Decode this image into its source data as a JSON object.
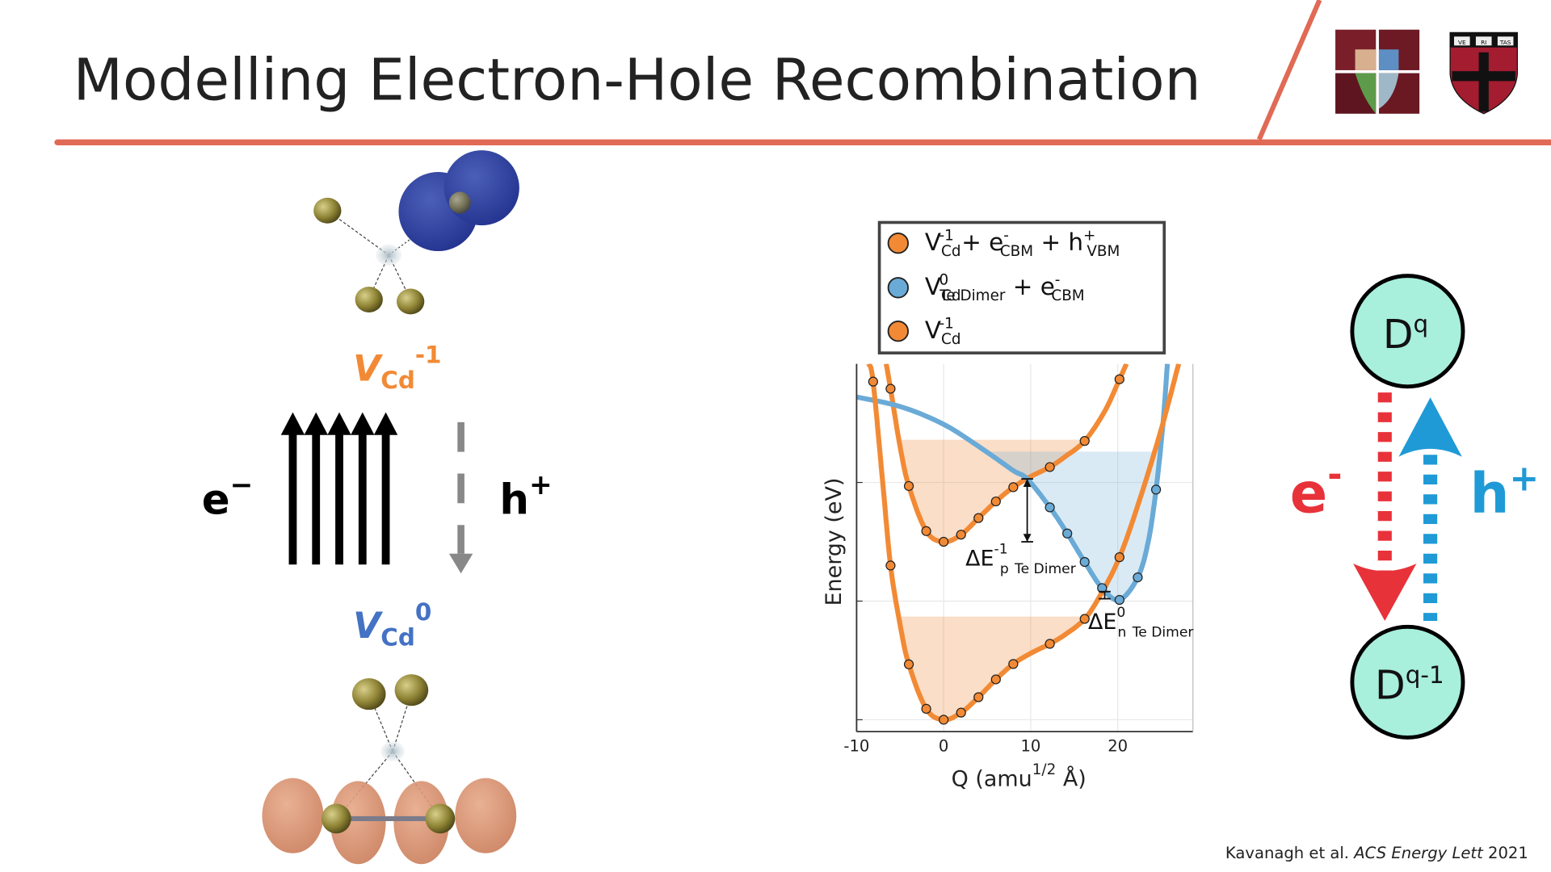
{
  "title": "Modelling Electron-Hole Recombination",
  "colors": {
    "accent": "#e06a55",
    "orange": "#f28a35",
    "blue": "#6aaad6",
    "vcd0_blue": "#4472c4",
    "red": "#e8323a",
    "cyan": "#1f9ad6",
    "circle_fill": "#a8efdc"
  },
  "logos": {
    "left": "school-mosaic-logo",
    "right": {
      "name": "harvard-shield-logo",
      "text": [
        "VE",
        "RI",
        "TAS"
      ]
    }
  },
  "left_panel": {
    "top_state": {
      "base": "V",
      "sub": "Cd",
      "sup": "-1"
    },
    "bottom_state": {
      "base": "V",
      "sub": "Cd",
      "sup": "0"
    },
    "electron": {
      "base": "e",
      "sup": "−"
    },
    "hole": {
      "base": "h",
      "sup": "+"
    },
    "electron_arrows": 5
  },
  "chart_data": {
    "type": "line",
    "xlabel": {
      "base": "Q (amu",
      "sup": "1/2",
      "tail": " Å)"
    },
    "ylabel": "Energy (eV)",
    "xlim": [
      -10,
      28.6
    ],
    "ylim": [
      -0.1,
      3.0
    ],
    "xticks": [
      -10,
      0,
      10,
      20
    ],
    "yticks_unlabeled": [
      0,
      1,
      2
    ],
    "grid": true,
    "legend": {
      "position": "top",
      "entries": [
        {
          "color": "#f28a35",
          "parts": [
            [
              "V",
              ""
            ],
            [
              "Cd",
              "sub"
            ],
            [
              "-1",
              "sup"
            ],
            [
              " + e",
              ""
            ],
            [
              "-",
              "sup"
            ],
            [
              "CBM",
              "sub"
            ],
            [
              " + h",
              ""
            ],
            [
              "+",
              "sup"
            ],
            [
              "VBM",
              "sub"
            ]
          ]
        },
        {
          "color": "#6aaad6",
          "parts": [
            [
              "V",
              ""
            ],
            [
              "Cd",
              "sub"
            ],
            [
              "0",
              "sup"
            ],
            [
              "Te Dimer",
              "sub"
            ],
            [
              " + e",
              ""
            ],
            [
              "-",
              "sup"
            ],
            [
              "CBM",
              "sub"
            ]
          ]
        },
        {
          "color": "#f28a35",
          "parts": [
            [
              "V",
              ""
            ],
            [
              "Cd",
              "sub"
            ],
            [
              "-1",
              "sup"
            ]
          ]
        }
      ]
    },
    "series": [
      {
        "color": "#f28a35",
        "shade_level": 2.36,
        "curve": [
          [
            -6.6,
            3.0
          ],
          [
            -6.1,
            2.79
          ],
          [
            -5,
            2.3
          ],
          [
            -4,
            1.97
          ],
          [
            -2,
            1.59
          ],
          [
            0,
            1.5
          ],
          [
            2,
            1.56
          ],
          [
            4,
            1.7
          ],
          [
            6,
            1.84
          ],
          [
            8,
            1.96
          ],
          [
            10,
            2.05
          ],
          [
            12.2,
            2.13
          ],
          [
            14,
            2.22
          ],
          [
            16.2,
            2.35
          ],
          [
            18.5,
            2.6
          ],
          [
            20.2,
            2.87
          ],
          [
            21,
            3.0
          ]
        ],
        "points": [
          [
            -6.1,
            2.79
          ],
          [
            -4,
            1.97
          ],
          [
            -2,
            1.59
          ],
          [
            0,
            1.5
          ],
          [
            2,
            1.56
          ],
          [
            4,
            1.7
          ],
          [
            6,
            1.84
          ],
          [
            8,
            1.96
          ],
          [
            12.2,
            2.13
          ],
          [
            16.2,
            2.35
          ],
          [
            20.2,
            2.87
          ]
        ]
      },
      {
        "color": "#6aaad6",
        "shade_level": 2.26,
        "curve": [
          [
            -10,
            2.72
          ],
          [
            -5,
            2.64
          ],
          [
            0,
            2.49
          ],
          [
            4.5,
            2.28
          ],
          [
            8,
            2.1
          ],
          [
            9.6,
            2.03
          ],
          [
            12.2,
            1.79
          ],
          [
            14.2,
            1.57
          ],
          [
            16.2,
            1.33
          ],
          [
            18.2,
            1.11
          ],
          [
            20.2,
            1.01
          ],
          [
            22.3,
            1.2
          ],
          [
            23.5,
            1.5
          ],
          [
            24.4,
            1.94
          ],
          [
            25.2,
            2.5
          ],
          [
            25.7,
            3.0
          ]
        ],
        "points": [
          [
            12.2,
            1.79
          ],
          [
            14.2,
            1.57
          ],
          [
            16.2,
            1.33
          ],
          [
            18.2,
            1.11
          ],
          [
            20.2,
            1.01
          ],
          [
            22.3,
            1.2
          ],
          [
            24.4,
            1.94
          ]
        ]
      },
      {
        "color": "#f28a35",
        "shade_level": 0.87,
        "curve": [
          [
            -8.6,
            3.0
          ],
          [
            -8.1,
            2.85
          ],
          [
            -7,
            2.0
          ],
          [
            -6.1,
            1.3
          ],
          [
            -5,
            0.8
          ],
          [
            -4,
            0.467
          ],
          [
            -2,
            0.092
          ],
          [
            0,
            0
          ],
          [
            2,
            0.06
          ],
          [
            4,
            0.19
          ],
          [
            6,
            0.34
          ],
          [
            8,
            0.47
          ],
          [
            10,
            0.56
          ],
          [
            12.2,
            0.64
          ],
          [
            14,
            0.72
          ],
          [
            16.2,
            0.85
          ],
          [
            18,
            1.05
          ],
          [
            20.2,
            1.37
          ],
          [
            22.5,
            1.85
          ],
          [
            25,
            2.45
          ],
          [
            27,
            3.0
          ]
        ],
        "points": [
          [
            -8.1,
            2.85
          ],
          [
            -6.1,
            1.3
          ],
          [
            -4,
            0.467
          ],
          [
            -2,
            0.092
          ],
          [
            0,
            0
          ],
          [
            2,
            0.06
          ],
          [
            4,
            0.19
          ],
          [
            6,
            0.34
          ],
          [
            8,
            0.47
          ],
          [
            12.2,
            0.64
          ],
          [
            16.2,
            0.85
          ],
          [
            20.2,
            1.37
          ]
        ]
      }
    ],
    "annotations": [
      {
        "q": 9.6,
        "from": 2.03,
        "to": 1.5,
        "label": {
          "base": "ΔE",
          "sub": "p",
          "sup": "-1",
          "tail": "Te Dimer"
        }
      },
      {
        "q": 18.5,
        "from": 1.08,
        "to": 1.02,
        "label": {
          "base": "ΔE",
          "sub": "n",
          "sup": "0",
          "tail": "Te Dimer"
        }
      }
    ]
  },
  "right_panel": {
    "top_state": {
      "base": "D",
      "sup": "q"
    },
    "bottom_state": {
      "base": "D",
      "sup": "q-1"
    },
    "electron": {
      "base": "e",
      "sup": "-"
    },
    "hole": {
      "base": "h",
      "sup": "+"
    }
  },
  "citation": {
    "authors": "Kavanagh et al. ",
    "journal": "ACS Energy Lett",
    "year": " 2021"
  }
}
